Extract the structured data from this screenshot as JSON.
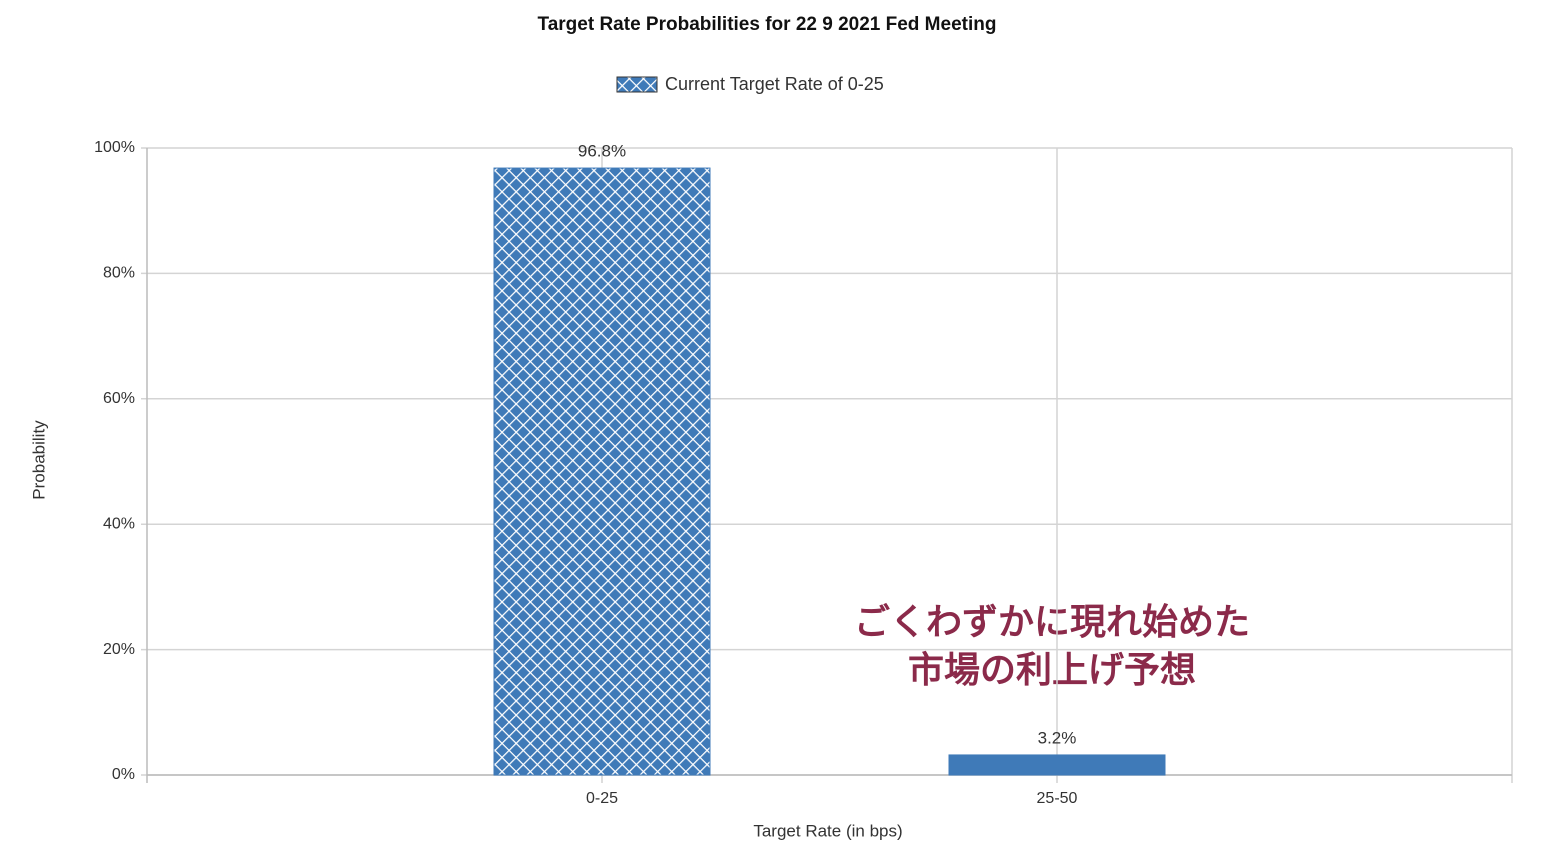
{
  "chart_data": {
    "type": "bar",
    "title": "Target Rate Probabilities for 22 9 2021 Fed Meeting",
    "x_label": "Target Rate (in bps)",
    "y_label": "Probability",
    "categories": [
      "0-25",
      "25-50"
    ],
    "series": [
      {
        "name": "Current Target Rate of 0-25",
        "color": "#3f7ab8",
        "values": [
          96.8,
          3.2
        ],
        "value_labels": [
          "96.8%",
          "3.2%"
        ]
      }
    ],
    "bar_fills": [
      "crosshatch",
      "solid"
    ],
    "ylim": [
      0,
      100
    ],
    "yticks": [
      {
        "value": 0,
        "label": "0%"
      },
      {
        "value": 20,
        "label": "20%"
      },
      {
        "value": 40,
        "label": "40%"
      },
      {
        "value": 60,
        "label": "60%"
      },
      {
        "value": 80,
        "label": "80%"
      },
      {
        "value": 100,
        "label": "100%"
      }
    ],
    "grid": true,
    "legend": "top",
    "annotations": [
      "ごくわずかに現れ始めた",
      "市場の利上げ予想"
    ]
  }
}
